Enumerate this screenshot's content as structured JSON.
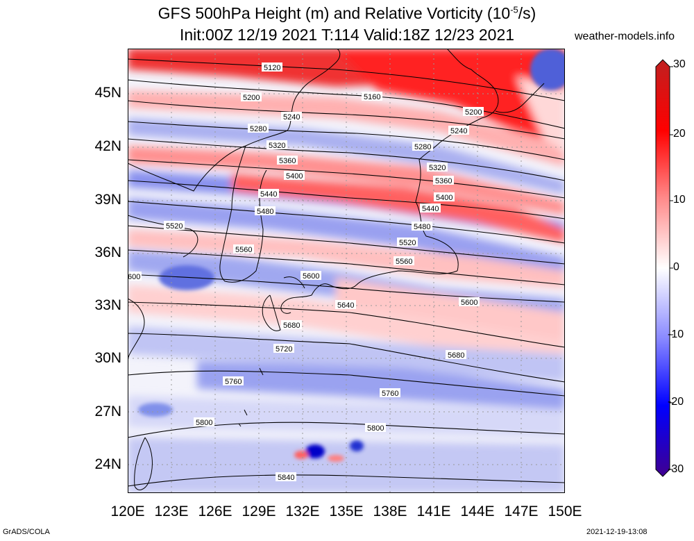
{
  "header": {
    "title_line1": "GFS 500hPa Height (m) and Relative Vorticity (10",
    "title_exp": "-5",
    "title_unit": "/s)",
    "title_line2": "Init:00Z 12/19 2021 T:114 Valid:18Z 12/23 2021",
    "site": "weather-models.info"
  },
  "footer": {
    "credit": "GrADS/COLA",
    "timestamp": "2021-12-19-13:08"
  },
  "map": {
    "lat_labels": [
      "45N",
      "42N",
      "39N",
      "36N",
      "33N",
      "30N",
      "27N",
      "24N"
    ],
    "lon_labels": [
      "120E",
      "123E",
      "126E",
      "129E",
      "132E",
      "135E",
      "138E",
      "141E",
      "144E",
      "147E",
      "150E"
    ],
    "contour_labels": [
      "5120",
      "5160",
      "5200",
      "5200",
      "5240",
      "5240",
      "5280",
      "5280",
      "5320",
      "5320",
      "5360",
      "5360",
      "5400",
      "5400",
      "5440",
      "5440",
      "5480",
      "5480",
      "5520",
      "5520",
      "5560",
      "5560",
      "5600",
      "5600",
      "5640",
      "5680",
      "5680",
      "5720",
      "5760",
      "5760",
      "5800",
      "5800",
      "5840",
      "600"
    ]
  },
  "colorbar": {
    "labels": [
      "30",
      "20",
      "10",
      "0",
      "-10",
      "-20",
      "-30"
    ],
    "colors": {
      "max": "#b22222",
      "pos_high": "#ff0000",
      "pos_mid": "#ff8080",
      "zero": "#ffffff",
      "neg_mid": "#8080ff",
      "neg_high": "#0000ff",
      "min": "#4b0082"
    }
  }
}
